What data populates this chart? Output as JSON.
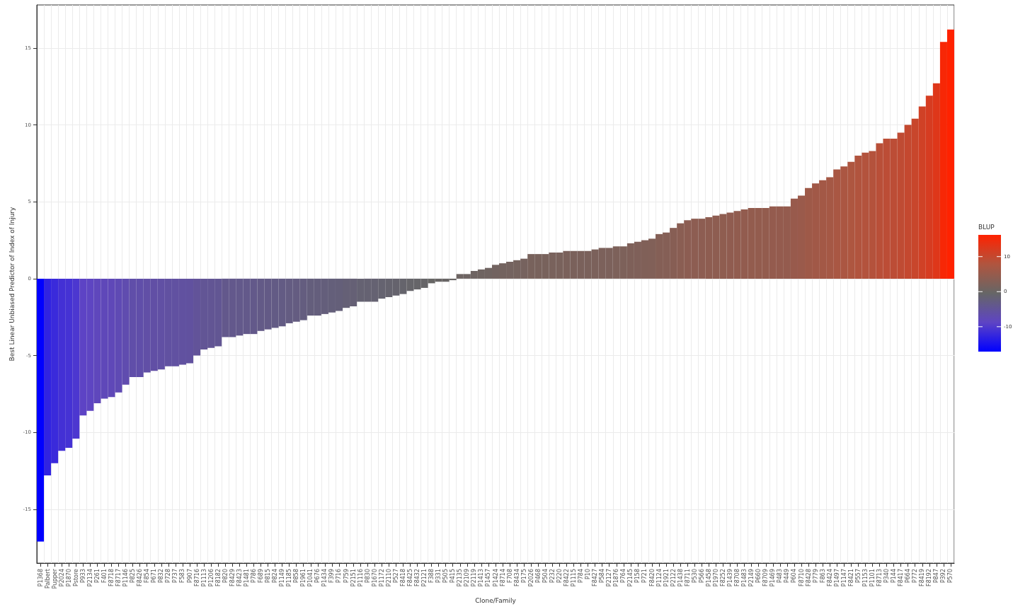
{
  "chart_data": {
    "type": "bar",
    "xlabel": "Clone/Family",
    "ylabel": "Best Linear Unbiased Predictor of Index of Injury",
    "clabel": "BLUP",
    "categories": [
      "P1368",
      "Palbert",
      "Pupper",
      "P2024",
      "P1870",
      "Pstore",
      "P933",
      "P2134",
      "P261",
      "F401",
      "F8718",
      "F8717",
      "P1146",
      "P825",
      "F8426",
      "F854",
      "P671",
      "P832",
      "P728",
      "P737",
      "F583",
      "P907",
      "F8716",
      "P1113",
      "P1206",
      "F8182",
      "P820",
      "F8429",
      "F8423",
      "P1481",
      "P786",
      "F689",
      "P815",
      "P824",
      "P1149",
      "P1185",
      "P858",
      "P1961",
      "P1041",
      "P676",
      "P1434",
      "F399",
      "P716",
      "P759",
      "P2151",
      "P1116",
      "P830",
      "P1670",
      "P1172",
      "P2110",
      "P527",
      "F8418",
      "F8425",
      "F8432",
      "P2121",
      "F388",
      "P331",
      "P505",
      "P415",
      "P2135",
      "P2109",
      "P2119",
      "P1413",
      "P1457",
      "P1424",
      "F8714",
      "F708",
      "F8434",
      "P175",
      "P2026",
      "P468",
      "P504",
      "P232",
      "P220",
      "F8422",
      "P1115",
      "P784",
      "P10",
      "F8427",
      "P584",
      "P2127",
      "P1876",
      "P764",
      "P2145",
      "P158",
      "P721",
      "F8420",
      "P1124",
      "P1921",
      "P2122",
      "P1438",
      "F8711",
      "P530",
      "P566",
      "P1458",
      "P1970",
      "F8252",
      "P1439",
      "F8708",
      "P1483",
      "P2149",
      "P660",
      "F8709",
      "P1469",
      "P483",
      "P449",
      "P604",
      "F8710",
      "F8428",
      "P779",
      "F863",
      "F8424",
      "P1497",
      "P1147",
      "F8421",
      "P557",
      "P1153",
      "P1101",
      "F8713",
      "P340",
      "P144",
      "F8417",
      "P664",
      "P772",
      "F8419",
      "F8192",
      "P847",
      "P392",
      "P570"
    ],
    "values": [
      -17.1,
      -12.8,
      -12.0,
      -11.2,
      -11.0,
      -10.4,
      -8.9,
      -8.6,
      -8.1,
      -7.8,
      -7.7,
      -7.4,
      -6.9,
      -6.4,
      -6.4,
      -6.1,
      -6.0,
      -5.9,
      -5.7,
      -5.7,
      -5.6,
      -5.5,
      -5.0,
      -4.6,
      -4.5,
      -4.4,
      -3.8,
      -3.8,
      -3.7,
      -3.6,
      -3.6,
      -3.4,
      -3.3,
      -3.2,
      -3.1,
      -2.9,
      -2.8,
      -2.7,
      -2.4,
      -2.4,
      -2.3,
      -2.2,
      -2.1,
      -1.9,
      -1.8,
      -1.5,
      -1.5,
      -1.5,
      -1.3,
      -1.2,
      -1.1,
      -1.0,
      -0.8,
      -0.7,
      -0.6,
      -0.3,
      -0.2,
      -0.2,
      -0.1,
      0.3,
      0.3,
      0.5,
      0.6,
      0.7,
      0.9,
      1.0,
      1.1,
      1.2,
      1.3,
      1.6,
      1.6,
      1.6,
      1.7,
      1.7,
      1.8,
      1.8,
      1.8,
      1.8,
      1.9,
      2.0,
      2.0,
      2.1,
      2.1,
      2.3,
      2.4,
      2.5,
      2.6,
      2.9,
      3.0,
      3.3,
      3.6,
      3.8,
      3.9,
      3.9,
      4.0,
      4.1,
      4.2,
      4.3,
      4.4,
      4.5,
      4.6,
      4.6,
      4.6,
      4.7,
      4.7,
      4.7,
      5.2,
      5.4,
      5.9,
      6.2,
      6.4,
      6.6,
      7.1,
      7.3,
      7.6,
      8.0,
      8.2,
      8.3,
      8.8,
      9.1,
      9.1,
      9.5,
      10.0,
      10.4,
      11.2,
      11.9,
      12.7,
      15.4,
      16.2
    ],
    "cvalues": [
      -17.1,
      -12.8,
      -12.0,
      -11.2,
      -11.0,
      -10.4,
      -8.9,
      -8.6,
      -8.1,
      -7.8,
      -7.7,
      -7.4,
      -6.9,
      -6.4,
      -6.4,
      -6.1,
      -6.0,
      -5.9,
      -5.7,
      -5.7,
      -5.6,
      -5.5,
      -5.0,
      -4.6,
      -4.5,
      -4.4,
      -3.8,
      -3.8,
      -3.7,
      -3.6,
      -3.6,
      -3.4,
      -3.3,
      -3.2,
      -3.1,
      -2.9,
      -2.8,
      -2.7,
      -2.4,
      -2.4,
      -2.3,
      -2.2,
      -2.1,
      -1.9,
      -1.8,
      -1.5,
      -1.5,
      -1.5,
      -1.3,
      -1.2,
      -1.1,
      -1.0,
      -0.8,
      -0.7,
      -0.6,
      -0.3,
      -0.2,
      -0.2,
      -0.1,
      0.3,
      0.3,
      0.5,
      0.6,
      0.7,
      0.9,
      1.0,
      1.1,
      1.2,
      1.3,
      1.6,
      1.6,
      1.6,
      1.7,
      1.7,
      1.8,
      1.8,
      1.8,
      1.8,
      1.9,
      2.0,
      2.0,
      2.1,
      2.1,
      2.3,
      2.4,
      2.5,
      2.6,
      2.9,
      3.0,
      3.3,
      3.6,
      3.8,
      3.9,
      3.9,
      4.0,
      4.1,
      4.2,
      4.3,
      4.4,
      4.5,
      4.6,
      4.6,
      4.6,
      4.7,
      4.7,
      4.7,
      5.2,
      5.4,
      5.9,
      6.2,
      6.4,
      6.6,
      7.1,
      7.3,
      7.6,
      8.0,
      8.2,
      8.3,
      8.8,
      9.1,
      9.1,
      9.5,
      10.0,
      10.4,
      11.2,
      11.9,
      12.7,
      15.4,
      16.2
    ],
    "clim": [
      -17.1,
      16.2
    ],
    "cticks": [
      -10,
      0,
      10
    ],
    "ylim": [
      -18.5,
      17.8
    ],
    "yticks": [
      -15,
      -10,
      -5,
      0,
      5,
      10,
      15
    ],
    "grid": true
  }
}
